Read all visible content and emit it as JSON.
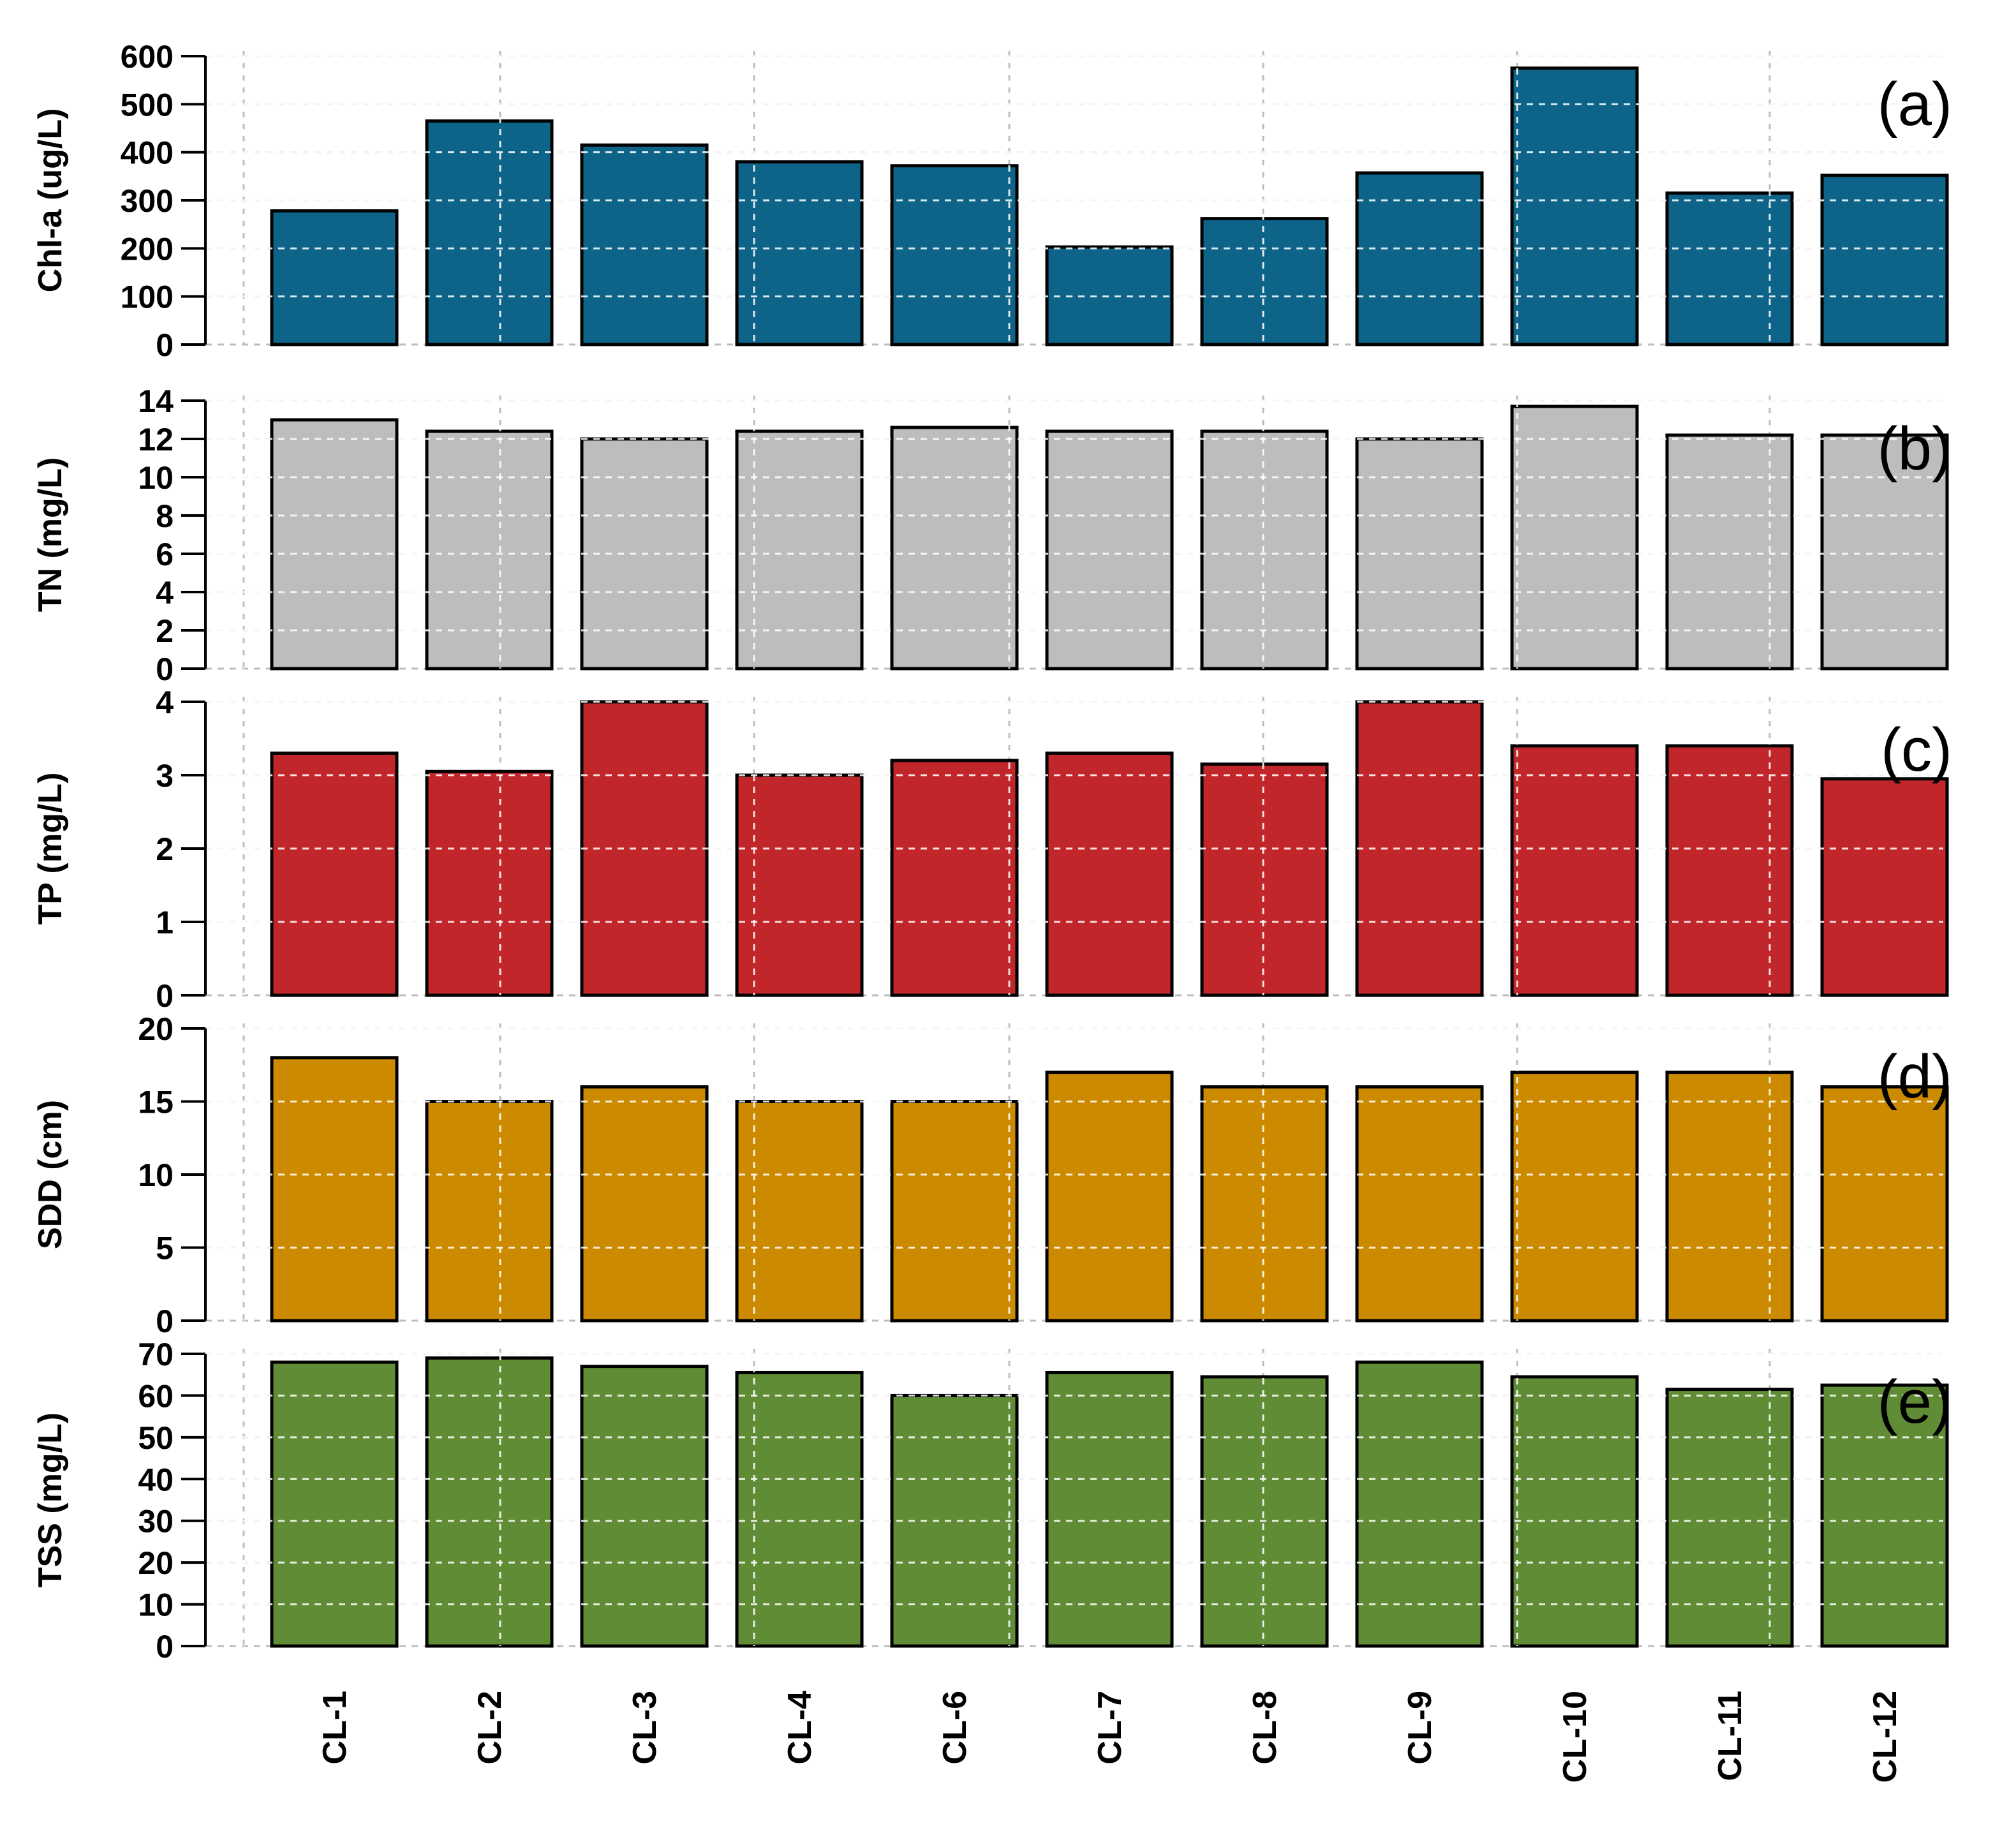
{
  "chart_data": [
    {
      "type": "bar",
      "panel": "(a)",
      "ylabel": "Chl-a (ug/L)",
      "categories": [
        "CL-1",
        "CL-2",
        "CL-3",
        "CL-4",
        "CL-6",
        "CL-7",
        "CL-8",
        "CL-9",
        "CL-10",
        "CL-11",
        "CL-12"
      ],
      "values": [
        278,
        465,
        415,
        380,
        372,
        203,
        262,
        357,
        575,
        315,
        352
      ],
      "ylim": [
        0,
        600
      ],
      "yticks": [
        0,
        100,
        200,
        300,
        400,
        500,
        600
      ],
      "color": "#0d6488",
      "grid": true
    },
    {
      "type": "bar",
      "panel": "(b)",
      "ylabel": "TN (mg/L)",
      "categories": [
        "CL-1",
        "CL-2",
        "CL-3",
        "CL-4",
        "CL-6",
        "CL-7",
        "CL-8",
        "CL-9",
        "CL-10",
        "CL-11",
        "CL-12"
      ],
      "values": [
        13.0,
        12.4,
        12.0,
        12.4,
        12.6,
        12.4,
        12.4,
        12.0,
        13.7,
        12.2,
        12.2
      ],
      "ylim": [
        0,
        14
      ],
      "yticks": [
        0,
        2,
        4,
        6,
        8,
        10,
        12,
        14
      ],
      "color": "#bdbdbd",
      "grid": true
    },
    {
      "type": "bar",
      "panel": "(c)",
      "ylabel": "TP (mg/L)",
      "categories": [
        "CL-1",
        "CL-2",
        "CL-3",
        "CL-4",
        "CL-6",
        "CL-7",
        "CL-8",
        "CL-9",
        "CL-10",
        "CL-11",
        "CL-12"
      ],
      "values": [
        3.3,
        3.05,
        4.0,
        3.0,
        3.2,
        3.3,
        3.15,
        4.0,
        3.4,
        3.4,
        2.95
      ],
      "ylim": [
        0,
        4
      ],
      "yticks": [
        0,
        1,
        2,
        3,
        4
      ],
      "color": "#c0262a",
      "grid": true
    },
    {
      "type": "bar",
      "panel": "(d)",
      "ylabel": "SDD (cm)",
      "categories": [
        "CL-1",
        "CL-2",
        "CL-3",
        "CL-4",
        "CL-6",
        "CL-7",
        "CL-8",
        "CL-9",
        "CL-10",
        "CL-11",
        "CL-12"
      ],
      "values": [
        18,
        15,
        16,
        15,
        15,
        17,
        16,
        16,
        17,
        17,
        16
      ],
      "ylim": [
        0,
        20
      ],
      "yticks": [
        0,
        5,
        10,
        15,
        20
      ],
      "color": "#cc8a00",
      "grid": true
    },
    {
      "type": "bar",
      "panel": "(e)",
      "ylabel": "TSS (mg/L)",
      "categories": [
        "CL-1",
        "CL-2",
        "CL-3",
        "CL-4",
        "CL-6",
        "CL-7",
        "CL-8",
        "CL-9",
        "CL-10",
        "CL-11",
        "CL-12"
      ],
      "values": [
        68,
        69,
        67,
        65.5,
        60,
        65.5,
        64.5,
        68,
        64.5,
        61.5,
        62.5
      ],
      "ylim": [
        0,
        70
      ],
      "yticks": [
        0,
        10,
        20,
        30,
        40,
        50,
        60,
        70
      ],
      "color": "#5f8c35",
      "grid": true
    }
  ]
}
